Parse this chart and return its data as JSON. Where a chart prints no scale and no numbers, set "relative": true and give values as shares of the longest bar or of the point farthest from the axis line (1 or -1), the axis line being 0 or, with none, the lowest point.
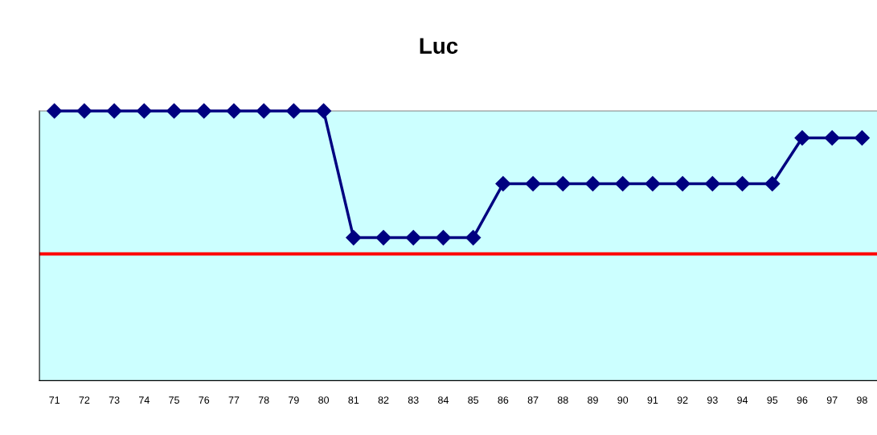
{
  "chart_data": {
    "type": "line",
    "title": "Luc",
    "relative": true,
    "categories": [
      "71",
      "72",
      "73",
      "74",
      "75",
      "76",
      "77",
      "78",
      "79",
      "80",
      "81",
      "82",
      "83",
      "84",
      "85",
      "86",
      "87",
      "88",
      "89",
      "90",
      "91",
      "92",
      "93",
      "94",
      "95",
      "96",
      "97",
      "98"
    ],
    "series": [
      {
        "color": "#000080",
        "values": [
          1,
          1,
          1,
          1,
          1,
          1,
          1,
          1,
          1,
          1,
          0.53,
          0.53,
          0.53,
          0.53,
          0.53,
          0.73,
          0.73,
          0.73,
          0.73,
          0.73,
          0.73,
          0.73,
          0.73,
          0.73,
          0.73,
          0.9,
          0.9,
          0.9
        ]
      }
    ],
    "marker": "diamond",
    "line_style": "solid",
    "grid": false,
    "legend": false,
    "ref_lines": [
      {
        "axis": "y",
        "value": 0.47,
        "color": "#ff0000",
        "line_style": "solid"
      }
    ]
  }
}
